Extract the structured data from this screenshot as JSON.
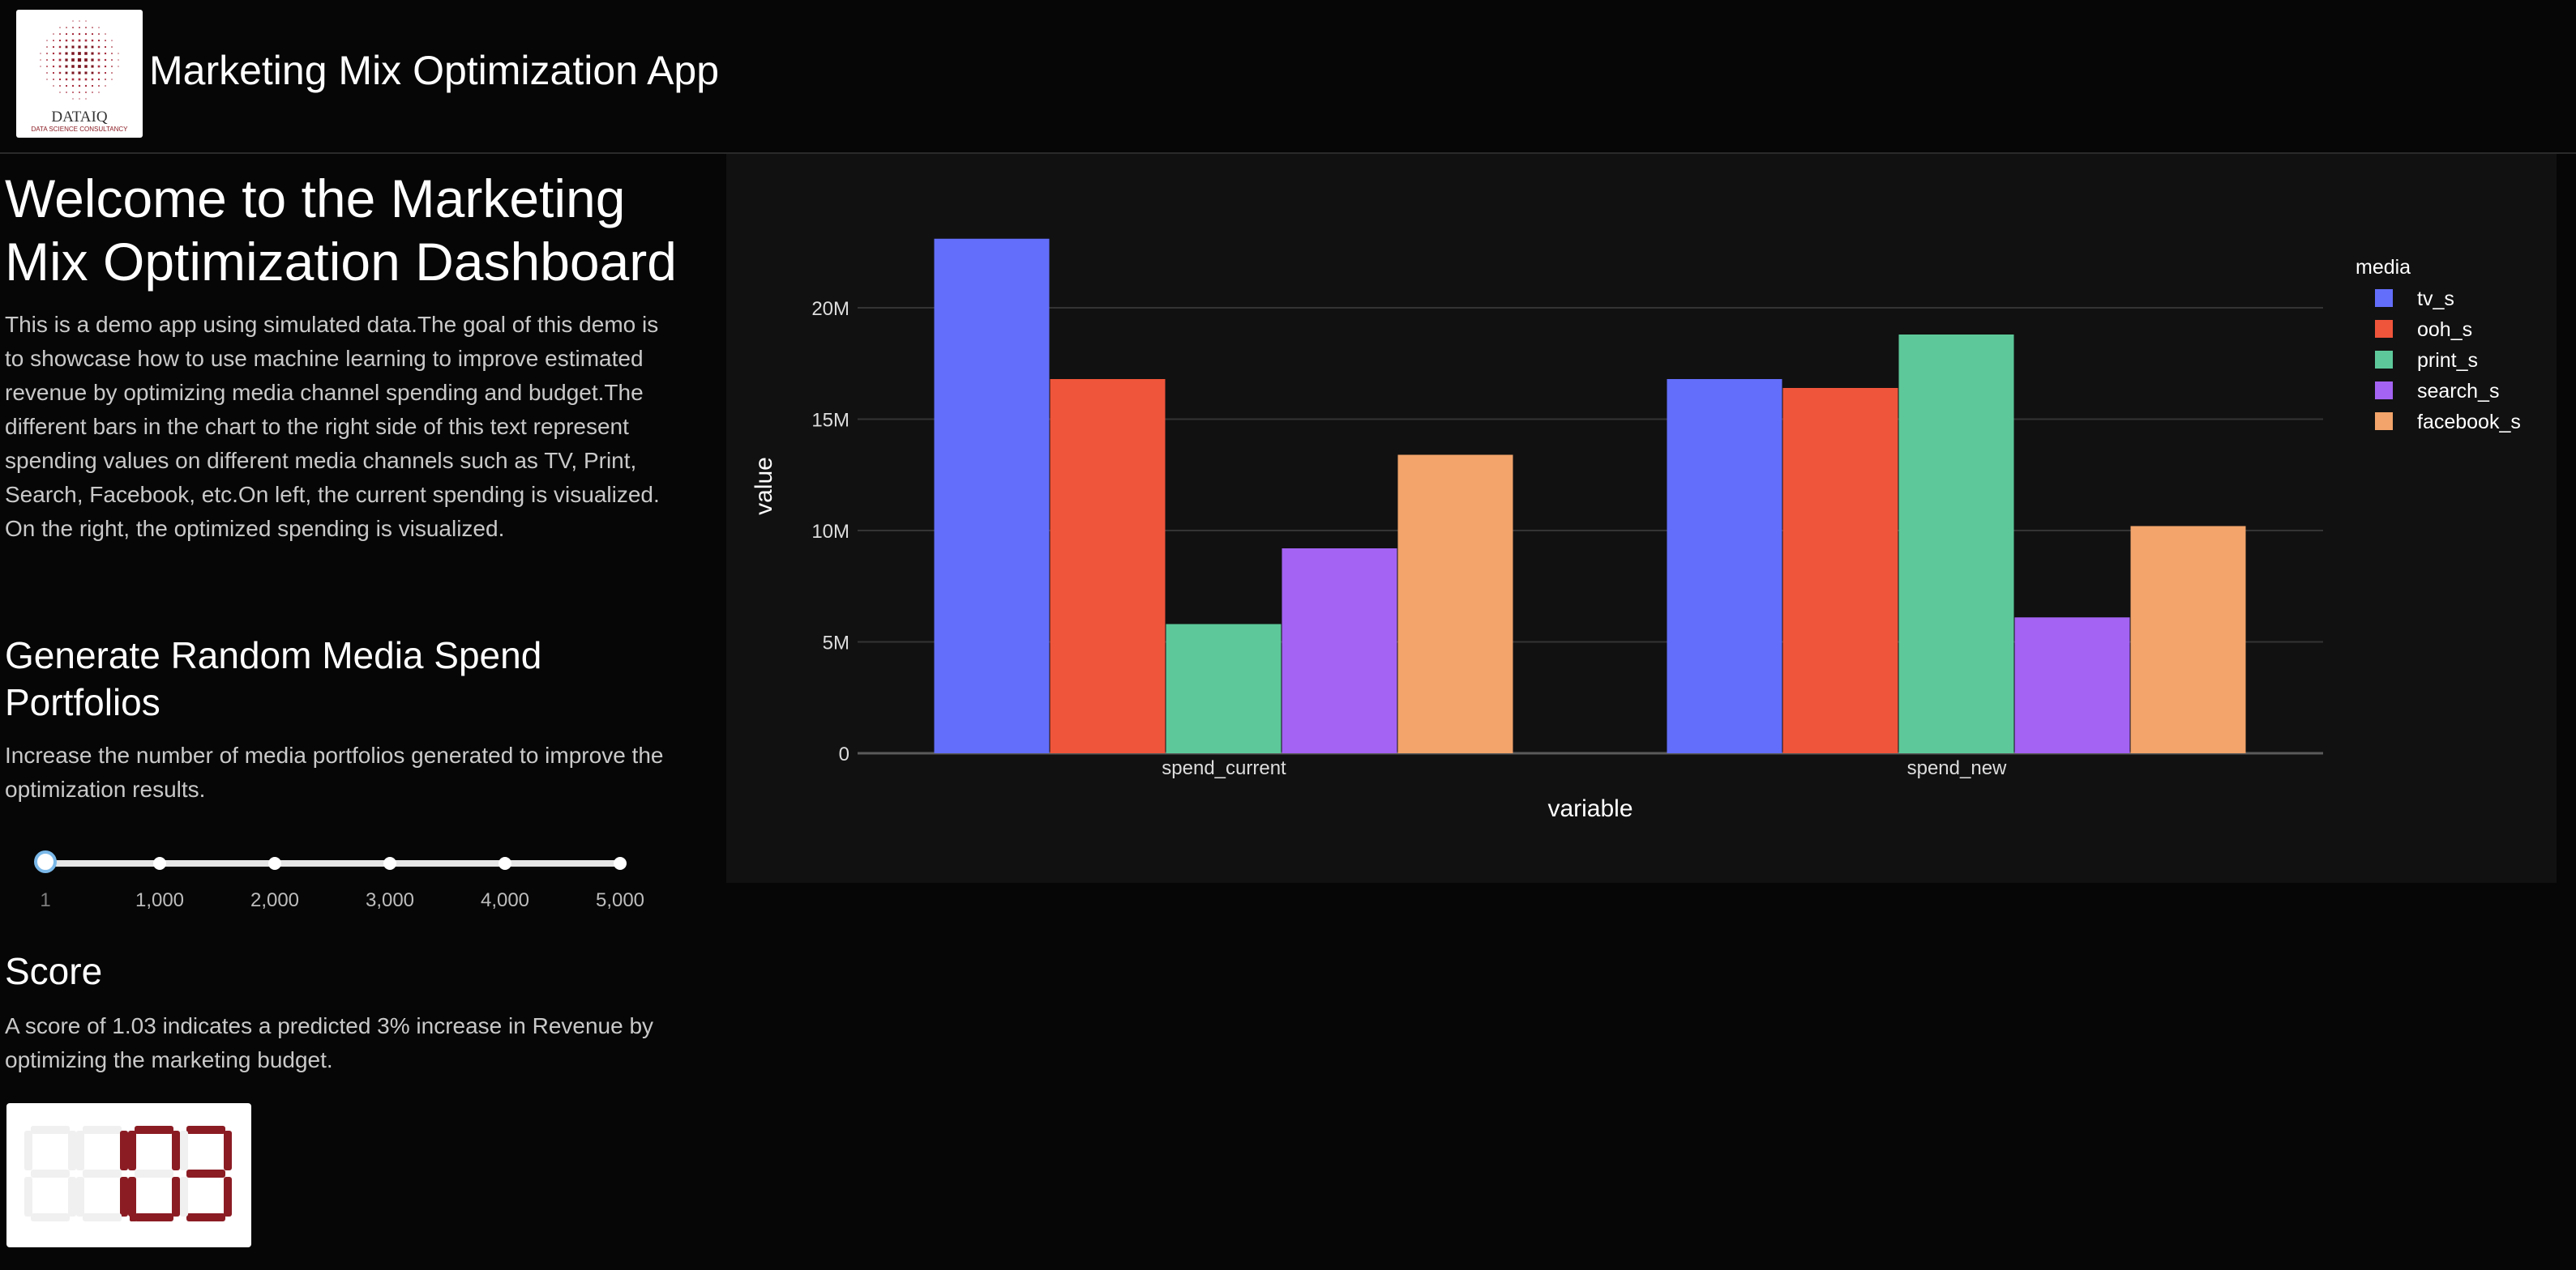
{
  "header": {
    "logo": {
      "text": "DATAIQ",
      "subtext": "DATA SCIENCE CONSULTANCY"
    },
    "title": "Marketing Mix Optimization App"
  },
  "intro": {
    "heading": "Welcome to the Marketing Mix Optimization Dashboard",
    "description": "This is a demo app using simulated data.The goal of this demo is to showcase how to use machine learning to improve estimated revenue by optimizing media channel spending and budget.The different bars in the chart to the right side of this text represent spending values on different media channels such as TV, Print, Search, Facebook, etc.On left, the current spending is visualized. On the right, the optimized spending is visualized."
  },
  "generator": {
    "heading": "Generate Random Media Spend Portfolios",
    "description": "Increase the number of media portfolios generated to improve the optimization results.",
    "slider": {
      "value": 1,
      "min": 1,
      "max": 5000,
      "marks": [
        "1",
        "1,000",
        "2,000",
        "3,000",
        "4,000",
        "5,000"
      ]
    }
  },
  "score": {
    "heading": "Score",
    "description": "A score of 1.03 indicates a predicted 3% increase in Revenue by optimizing the marketing budget.",
    "value": "1.03"
  },
  "colors": {
    "background": "#060606",
    "panel": "#111111",
    "led_on": "#8b1c24",
    "led_off": "#f0f0f0"
  },
  "chart_data": {
    "type": "bar",
    "categories": [
      "spend_current",
      "spend_new"
    ],
    "series": [
      {
        "name": "tv_s",
        "color": "#636efa",
        "values": [
          23100000,
          16800000
        ]
      },
      {
        "name": "ooh_s",
        "color": "#ef553b",
        "values": [
          16800000,
          16400000
        ]
      },
      {
        "name": "print_s",
        "color": "#5dc99a",
        "values": [
          5800000,
          18800000
        ]
      },
      {
        "name": "search_s",
        "color": "#a463f2",
        "values": [
          9200000,
          6100000
        ]
      },
      {
        "name": "facebook_s",
        "color": "#f2a46a",
        "values": [
          13400000,
          10200000
        ]
      }
    ],
    "xlabel": "variable",
    "ylabel": "value",
    "legend_title": "media",
    "legend_position": "top-right",
    "ylim": [
      0,
      24000000
    ],
    "yticks": [
      0,
      5000000,
      10000000,
      15000000,
      20000000
    ],
    "ytick_labels": [
      "0",
      "5M",
      "10M",
      "15M",
      "20M"
    ],
    "grid": true
  }
}
